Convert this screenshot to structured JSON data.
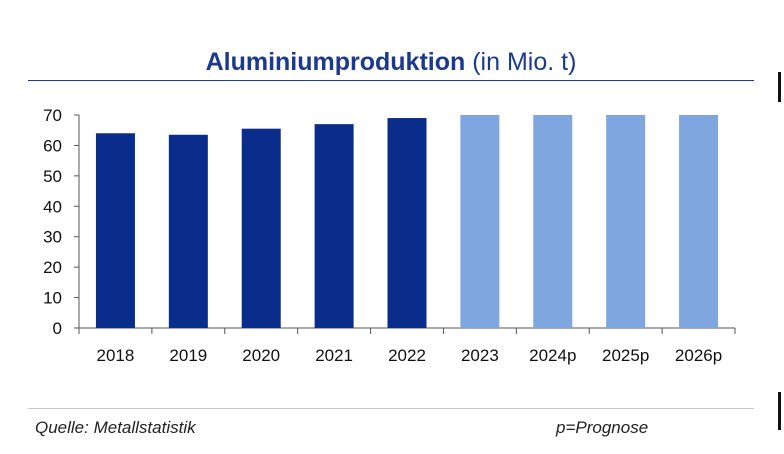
{
  "title": {
    "main": "Aluminiumproduktion",
    "unit": "(in Mio. t)"
  },
  "footer": {
    "source": "Quelle: Metallstatistik",
    "note": "p=Prognose"
  },
  "colors": {
    "actual": "#0a2d8c",
    "forecast": "#7fa6de",
    "title": "#1b3a8f",
    "axis": "#555555"
  },
  "chart_data": {
    "type": "bar",
    "title": "Aluminiumproduktion (in Mio. t)",
    "categories": [
      "2018",
      "2019",
      "2020",
      "2021",
      "2022",
      "2023",
      "2024p",
      "2025p",
      "2026p"
    ],
    "values": [
      64,
      63.5,
      65.5,
      67,
      69,
      70,
      70,
      70,
      70
    ],
    "forecast": [
      false,
      false,
      false,
      false,
      false,
      false,
      true,
      true,
      true
    ],
    "yticks": [
      "0",
      "10",
      "20",
      "30",
      "40",
      "50",
      "60",
      "70"
    ],
    "ylim": [
      0,
      70
    ],
    "grid": false,
    "legend": "none"
  }
}
